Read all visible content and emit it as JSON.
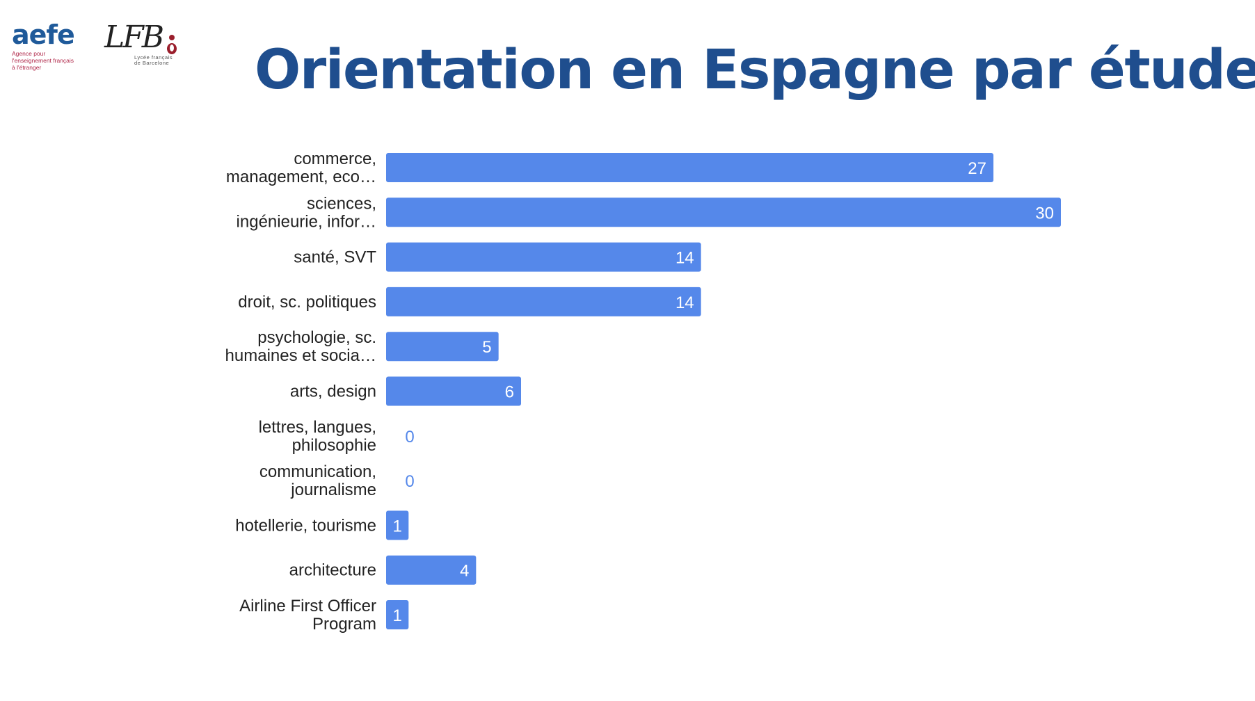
{
  "logos": {
    "aefe": {
      "word": "aefe",
      "line1": "Agence pour",
      "line2": "l'enseignement français",
      "line3": "à l'étranger"
    },
    "lfb": {
      "letters": "LFB",
      "line1": "Lycée français",
      "line2": "de Barcelone"
    }
  },
  "title": "Orientation en Espagne par études",
  "chart_data": {
    "type": "bar",
    "orientation": "horizontal",
    "categories": [
      [
        "commerce,",
        "management, eco…"
      ],
      [
        "sciences,",
        "ingénieurie, infor…"
      ],
      [
        "santé, SVT"
      ],
      [
        "droit, sc. politiques"
      ],
      [
        "psychologie, sc.",
        "humaines et socia…"
      ],
      [
        "arts, design"
      ],
      [
        "lettres, langues,",
        "philosophie"
      ],
      [
        "communication,",
        "journalisme"
      ],
      [
        "hotellerie, tourisme"
      ],
      [
        "architecture"
      ],
      [
        "Airline First Officer",
        "Program"
      ]
    ],
    "values": [
      27,
      30,
      14,
      14,
      5,
      6,
      0,
      0,
      1,
      4,
      1
    ],
    "xlim": [
      0,
      30
    ],
    "bar_color": "#5588ea",
    "value_label_inside_color": "#ffffff",
    "value_label_outside_color": "#5588ea",
    "grid": false,
    "legend": "none"
  },
  "colors": {
    "title": "#1f4e8e",
    "aefe_blue": "#1f5a9a",
    "aefe_red": "#b0284a"
  }
}
